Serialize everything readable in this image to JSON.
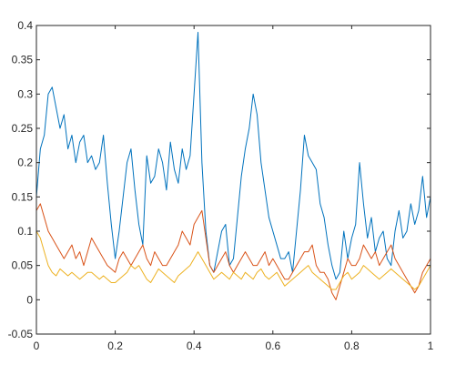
{
  "chart_data": {
    "type": "line",
    "title": "",
    "xlabel": "",
    "ylabel": "",
    "xlim": [
      0,
      1
    ],
    "ylim": [
      -0.05,
      0.4
    ],
    "x_ticks": [
      0,
      0.2,
      0.4,
      0.6,
      0.8,
      1
    ],
    "x_tick_labels": [
      "0",
      "0.2",
      "0.4",
      "0.6",
      "0.8",
      "1"
    ],
    "y_ticks": [
      -0.05,
      0,
      0.05,
      0.1,
      0.15,
      0.2,
      0.25,
      0.3,
      0.35,
      0.4
    ],
    "y_tick_labels": [
      "-0.05",
      "0",
      "0.05",
      "0.1",
      "0.15",
      "0.2",
      "0.25",
      "0.3",
      "0.35",
      "0.4"
    ],
    "grid": false,
    "legend": "none",
    "series": [
      {
        "color": "#0072BD",
        "x": [
          0,
          0.01,
          0.02,
          0.03,
          0.04,
          0.05,
          0.06,
          0.07,
          0.08,
          0.09,
          0.1,
          0.11,
          0.12,
          0.13,
          0.14,
          0.15,
          0.16,
          0.17,
          0.18,
          0.19,
          0.2,
          0.21,
          0.22,
          0.23,
          0.24,
          0.25,
          0.26,
          0.27,
          0.28,
          0.29,
          0.3,
          0.31,
          0.32,
          0.33,
          0.34,
          0.35,
          0.36,
          0.37,
          0.38,
          0.39,
          0.4,
          0.41,
          0.42,
          0.43,
          0.44,
          0.45,
          0.46,
          0.47,
          0.48,
          0.49,
          0.5,
          0.51,
          0.52,
          0.53,
          0.54,
          0.55,
          0.56,
          0.57,
          0.58,
          0.59,
          0.6,
          0.61,
          0.62,
          0.63,
          0.64,
          0.65,
          0.66,
          0.67,
          0.68,
          0.69,
          0.7,
          0.71,
          0.72,
          0.73,
          0.74,
          0.75,
          0.76,
          0.77,
          0.78,
          0.79,
          0.8,
          0.81,
          0.82,
          0.83,
          0.84,
          0.85,
          0.86,
          0.87,
          0.88,
          0.89,
          0.9,
          0.91,
          0.92,
          0.93,
          0.94,
          0.95,
          0.96,
          0.97,
          0.98,
          0.99,
          1
        ],
        "y": [
          0.15,
          0.22,
          0.24,
          0.3,
          0.31,
          0.28,
          0.25,
          0.27,
          0.22,
          0.24,
          0.2,
          0.23,
          0.24,
          0.2,
          0.21,
          0.19,
          0.2,
          0.24,
          0.17,
          0.11,
          0.06,
          0.1,
          0.15,
          0.2,
          0.22,
          0.16,
          0.11,
          0.08,
          0.21,
          0.17,
          0.18,
          0.22,
          0.2,
          0.16,
          0.23,
          0.19,
          0.17,
          0.22,
          0.19,
          0.21,
          0.3,
          0.39,
          0.2,
          0.1,
          0.05,
          0.04,
          0.07,
          0.1,
          0.11,
          0.05,
          0.06,
          0.12,
          0.18,
          0.22,
          0.25,
          0.3,
          0.27,
          0.2,
          0.16,
          0.12,
          0.1,
          0.08,
          0.06,
          0.06,
          0.07,
          0.04,
          0.1,
          0.16,
          0.24,
          0.21,
          0.2,
          0.19,
          0.14,
          0.12,
          0.08,
          0.05,
          0.03,
          0.04,
          0.1,
          0.06,
          0.09,
          0.11,
          0.2,
          0.14,
          0.09,
          0.12,
          0.07,
          0.09,
          0.1,
          0.06,
          0.05,
          0.1,
          0.13,
          0.09,
          0.1,
          0.14,
          0.11,
          0.13,
          0.18,
          0.12,
          0.15
        ]
      },
      {
        "color": "#D95319",
        "x": [
          0,
          0.01,
          0.02,
          0.03,
          0.04,
          0.05,
          0.06,
          0.07,
          0.08,
          0.09,
          0.1,
          0.11,
          0.12,
          0.13,
          0.14,
          0.15,
          0.16,
          0.17,
          0.18,
          0.19,
          0.2,
          0.21,
          0.22,
          0.23,
          0.24,
          0.25,
          0.26,
          0.27,
          0.28,
          0.29,
          0.3,
          0.31,
          0.32,
          0.33,
          0.34,
          0.35,
          0.36,
          0.37,
          0.38,
          0.39,
          0.4,
          0.41,
          0.42,
          0.43,
          0.44,
          0.45,
          0.46,
          0.47,
          0.48,
          0.49,
          0.5,
          0.51,
          0.52,
          0.53,
          0.54,
          0.55,
          0.56,
          0.57,
          0.58,
          0.59,
          0.6,
          0.61,
          0.62,
          0.63,
          0.64,
          0.65,
          0.66,
          0.67,
          0.68,
          0.69,
          0.7,
          0.71,
          0.72,
          0.73,
          0.74,
          0.75,
          0.76,
          0.77,
          0.78,
          0.79,
          0.8,
          0.81,
          0.82,
          0.83,
          0.84,
          0.85,
          0.86,
          0.87,
          0.88,
          0.89,
          0.9,
          0.91,
          0.92,
          0.93,
          0.94,
          0.95,
          0.96,
          0.97,
          0.98,
          0.99,
          1
        ],
        "y": [
          0.13,
          0.14,
          0.12,
          0.1,
          0.09,
          0.08,
          0.07,
          0.06,
          0.07,
          0.08,
          0.06,
          0.07,
          0.05,
          0.07,
          0.09,
          0.08,
          0.07,
          0.06,
          0.05,
          0.045,
          0.04,
          0.06,
          0.07,
          0.06,
          0.05,
          0.06,
          0.07,
          0.08,
          0.06,
          0.05,
          0.07,
          0.06,
          0.05,
          0.05,
          0.06,
          0.07,
          0.08,
          0.1,
          0.09,
          0.08,
          0.11,
          0.12,
          0.13,
          0.09,
          0.05,
          0.04,
          0.05,
          0.06,
          0.07,
          0.05,
          0.04,
          0.05,
          0.06,
          0.07,
          0.06,
          0.05,
          0.05,
          0.06,
          0.07,
          0.05,
          0.06,
          0.05,
          0.04,
          0.03,
          0.03,
          0.04,
          0.05,
          0.06,
          0.07,
          0.07,
          0.08,
          0.05,
          0.04,
          0.04,
          0.03,
          0.01,
          0.0,
          0.02,
          0.04,
          0.06,
          0.05,
          0.05,
          0.06,
          0.08,
          0.07,
          0.06,
          0.07,
          0.05,
          0.06,
          0.07,
          0.08,
          0.06,
          0.05,
          0.04,
          0.03,
          0.02,
          0.01,
          0.02,
          0.04,
          0.05,
          0.06
        ]
      },
      {
        "color": "#EDB120",
        "x": [
          0,
          0.01,
          0.02,
          0.03,
          0.04,
          0.05,
          0.06,
          0.07,
          0.08,
          0.09,
          0.1,
          0.11,
          0.12,
          0.13,
          0.14,
          0.15,
          0.16,
          0.17,
          0.18,
          0.19,
          0.2,
          0.21,
          0.22,
          0.23,
          0.24,
          0.25,
          0.26,
          0.27,
          0.28,
          0.29,
          0.3,
          0.31,
          0.32,
          0.33,
          0.34,
          0.35,
          0.36,
          0.37,
          0.38,
          0.39,
          0.4,
          0.41,
          0.42,
          0.43,
          0.44,
          0.45,
          0.46,
          0.47,
          0.48,
          0.49,
          0.5,
          0.51,
          0.52,
          0.53,
          0.54,
          0.55,
          0.56,
          0.57,
          0.58,
          0.59,
          0.6,
          0.61,
          0.62,
          0.63,
          0.64,
          0.65,
          0.66,
          0.67,
          0.68,
          0.69,
          0.7,
          0.71,
          0.72,
          0.73,
          0.74,
          0.75,
          0.76,
          0.77,
          0.78,
          0.79,
          0.8,
          0.81,
          0.82,
          0.83,
          0.84,
          0.85,
          0.86,
          0.87,
          0.88,
          0.89,
          0.9,
          0.91,
          0.92,
          0.93,
          0.94,
          0.95,
          0.96,
          0.97,
          0.98,
          0.99,
          1
        ],
        "y": [
          0.1,
          0.09,
          0.07,
          0.05,
          0.04,
          0.035,
          0.045,
          0.04,
          0.035,
          0.04,
          0.035,
          0.03,
          0.035,
          0.04,
          0.04,
          0.035,
          0.03,
          0.035,
          0.03,
          0.025,
          0.025,
          0.03,
          0.035,
          0.04,
          0.05,
          0.045,
          0.05,
          0.04,
          0.03,
          0.025,
          0.035,
          0.045,
          0.04,
          0.035,
          0.03,
          0.025,
          0.035,
          0.04,
          0.045,
          0.05,
          0.06,
          0.07,
          0.06,
          0.05,
          0.04,
          0.03,
          0.035,
          0.04,
          0.035,
          0.03,
          0.04,
          0.035,
          0.03,
          0.04,
          0.035,
          0.03,
          0.04,
          0.045,
          0.035,
          0.03,
          0.035,
          0.04,
          0.03,
          0.02,
          0.025,
          0.03,
          0.035,
          0.04,
          0.045,
          0.05,
          0.04,
          0.035,
          0.03,
          0.025,
          0.02,
          0.015,
          0.015,
          0.025,
          0.035,
          0.04,
          0.03,
          0.035,
          0.04,
          0.05,
          0.045,
          0.04,
          0.035,
          0.03,
          0.035,
          0.04,
          0.045,
          0.04,
          0.035,
          0.03,
          0.025,
          0.02,
          0.015,
          0.02,
          0.03,
          0.04,
          0.05
        ]
      }
    ]
  }
}
